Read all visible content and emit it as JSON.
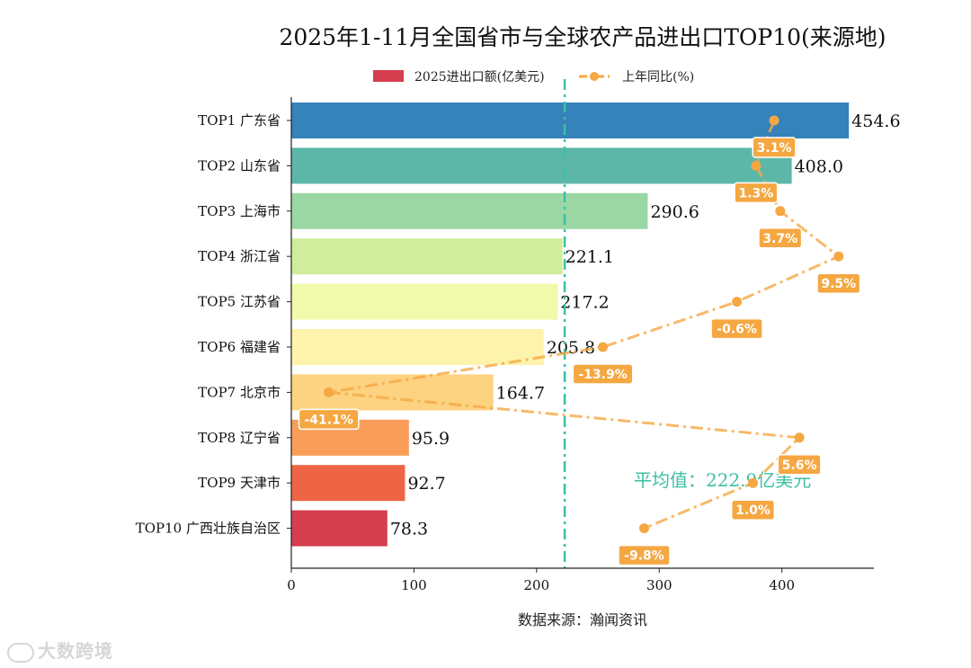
{
  "chart_data": {
    "type": "bar",
    "orientation": "horizontal",
    "title": "2025年1-11月全国省市与全球农产品进出口TOP10(来源地)",
    "xlabel": "数据来源：瀚闻资讯",
    "categories": [
      "TOP1 广东省",
      "TOP2 山东省",
      "TOP3 上海市",
      "TOP4 浙江省",
      "TOP5 江苏省",
      "TOP6 福建省",
      "TOP7 北京市",
      "TOP8 辽宁省",
      "TOP9 天津市",
      "TOP10 广西壮族自治区"
    ],
    "series": [
      {
        "name": "2025进出口额(亿美元)",
        "values": [
          454.6,
          408.0,
          290.6,
          221.1,
          217.2,
          205.8,
          164.7,
          95.9,
          92.7,
          78.3
        ],
        "value_labels": [
          "454.6",
          "408.0",
          "290.6",
          "221.1",
          "217.2",
          "205.8",
          "164.7",
          "95.9",
          "92.7",
          "78.3"
        ],
        "colors": [
          "#3682ba",
          "#5db7a9",
          "#9bd7a4",
          "#d1ec9c",
          "#f1f9aa",
          "#fef3ac",
          "#fdd281",
          "#f99d59",
          "#ee6545",
          "#d53e4f"
        ]
      },
      {
        "name": "上年同比(%)",
        "values": [
          3.1,
          1.3,
          3.7,
          9.5,
          -0.6,
          -13.9,
          -41.1,
          5.6,
          1.0,
          -9.8
        ],
        "value_labels": [
          "3.1%",
          "1.3%",
          "3.7%",
          "9.5%",
          "-0.6%",
          "-13.9%",
          "-41.1%",
          "5.6%",
          "1.0%",
          "-9.8%"
        ],
        "color": "#f5a742"
      }
    ],
    "xlim": [
      0,
      475
    ],
    "xticks": [
      "0",
      "100",
      "200",
      "300",
      "400"
    ],
    "average": {
      "value": 222.9,
      "label": "平均值：222.9亿美元",
      "color": "#3cbfa5"
    },
    "legend_position": "top-center",
    "grid": false
  },
  "watermark": {
    "text": "大数跨境"
  }
}
